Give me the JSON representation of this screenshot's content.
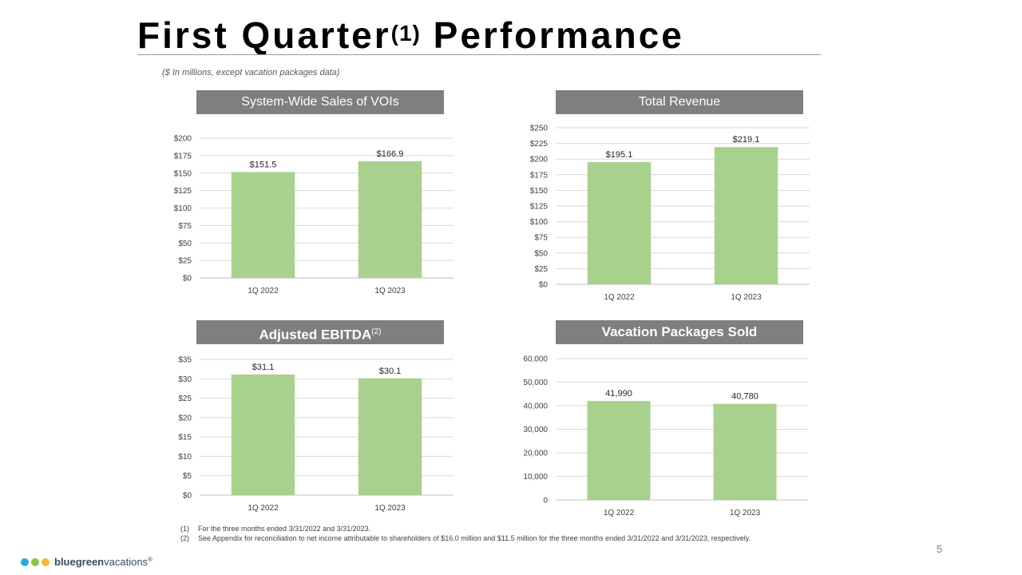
{
  "page": {
    "title_main": "First Quarter",
    "title_sup": "(1)",
    "title_end": "Performance",
    "subtitle": "($ In millions, except vacation packages data)",
    "page_number": "5"
  },
  "footnotes": [
    {
      "num": "(1)",
      "text": "For the three months ended 3/31/2022 and 3/31/2023."
    },
    {
      "num": "(2)",
      "text": "See Appendix for reconciliation to net income attributable to shareholders of $16.0 million and $11.5 million for the three months ended 3/31/2022 and 3/31/2023, respectively."
    }
  ],
  "logo": {
    "brand_bold": "bluegreen",
    "brand_light": "vacations",
    "reg": "®",
    "dot_colors": [
      "#29abe2",
      "#8cc63f",
      "#f7b733"
    ]
  },
  "colors": {
    "bar": "#a9d18e",
    "header_bg": "#7f7f7f",
    "grid": "#d9d9d9"
  },
  "chart_data": [
    {
      "id": "sales",
      "type": "bar",
      "title": "System-Wide Sales of VOIs",
      "title_sup": "",
      "categories": [
        "1Q 2022",
        "1Q 2023"
      ],
      "values": [
        151.5,
        166.9
      ],
      "value_labels": [
        "$151.5",
        "$166.9"
      ],
      "ylim": [
        0,
        200
      ],
      "y_ticks": [
        0,
        25,
        50,
        75,
        100,
        125,
        150,
        175,
        200
      ],
      "y_tick_labels": [
        "$0",
        "$25",
        "$50",
        "$75",
        "$100",
        "$125",
        "$150",
        "$175",
        "$200"
      ],
      "xlabel": "",
      "ylabel": ""
    },
    {
      "id": "revenue",
      "type": "bar",
      "title": "Total Revenue",
      "title_sup": "",
      "categories": [
        "1Q 2022",
        "1Q 2023"
      ],
      "values": [
        195.1,
        219.1
      ],
      "value_labels": [
        "$195.1",
        "$219.1"
      ],
      "ylim": [
        0,
        250
      ],
      "y_ticks": [
        0,
        25,
        50,
        75,
        100,
        125,
        150,
        175,
        200,
        225,
        250
      ],
      "y_tick_labels": [
        "$0",
        "$25",
        "$50",
        "$75",
        "$100",
        "$125",
        "$150",
        "$175",
        "$200",
        "$225",
        "$250"
      ],
      "xlabel": "",
      "ylabel": ""
    },
    {
      "id": "ebitda",
      "type": "bar",
      "title": "Adjusted EBITDA",
      "title_sup": "(2)",
      "categories": [
        "1Q 2022",
        "1Q 2023"
      ],
      "values": [
        31.1,
        30.1
      ],
      "value_labels": [
        "$31.1",
        "$30.1"
      ],
      "ylim": [
        0,
        35
      ],
      "y_ticks": [
        0,
        5,
        10,
        15,
        20,
        25,
        30,
        35
      ],
      "y_tick_labels": [
        "$0",
        "$5",
        "$10",
        "$15",
        "$20",
        "$25",
        "$30",
        "$35"
      ],
      "xlabel": "",
      "ylabel": ""
    },
    {
      "id": "packages",
      "type": "bar",
      "title": "Vacation Packages Sold",
      "title_sup": "",
      "categories": [
        "1Q 2022",
        "1Q 2023"
      ],
      "values": [
        41990,
        40780
      ],
      "value_labels": [
        "41,990",
        "40,780"
      ],
      "ylim": [
        0,
        60000
      ],
      "y_ticks": [
        0,
        10000,
        20000,
        30000,
        40000,
        50000,
        60000
      ],
      "y_tick_labels": [
        "0",
        "10,000",
        "20,000",
        "30,000",
        "40,000",
        "50,000",
        "60,000"
      ],
      "xlabel": "",
      "ylabel": ""
    }
  ]
}
